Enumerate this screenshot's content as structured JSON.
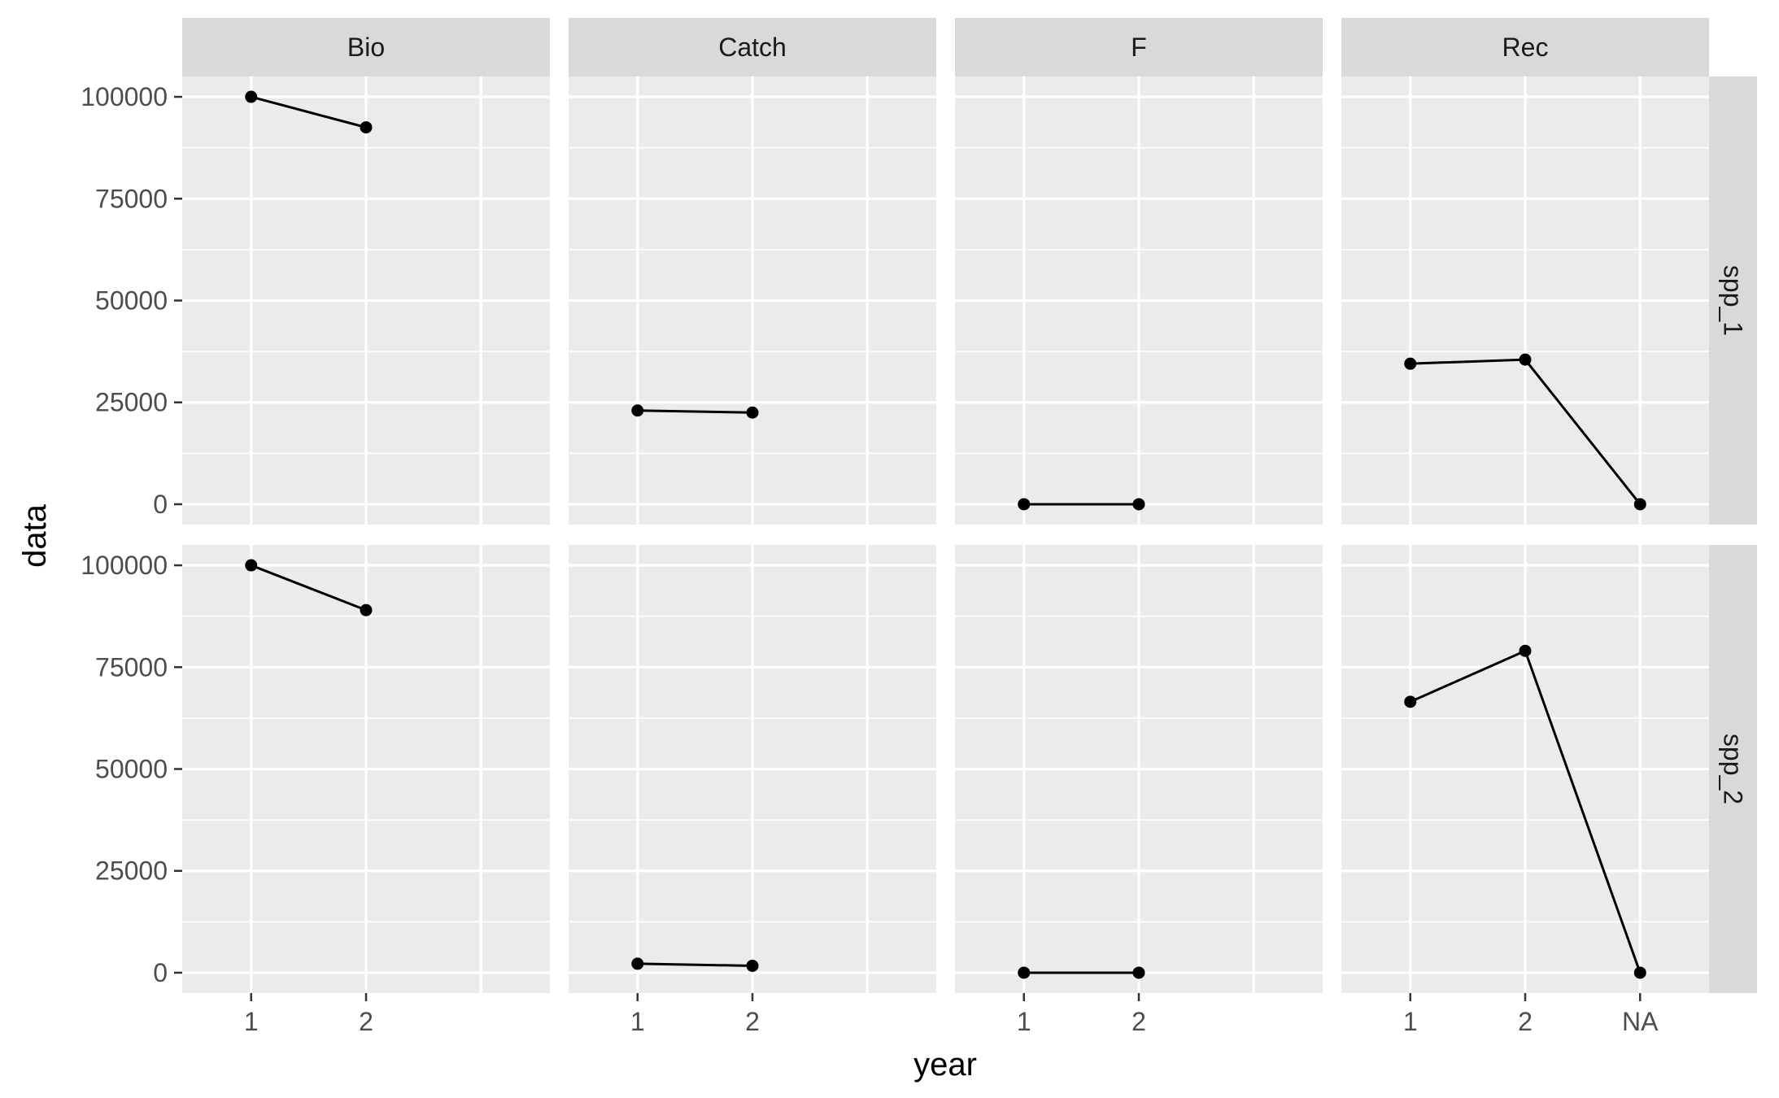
{
  "chart_data": {
    "type": "line",
    "facet_columns": [
      "Bio",
      "Catch",
      "F",
      "Rec"
    ],
    "facet_rows": [
      "spp_1",
      "spp_2"
    ],
    "xlabel": "year",
    "ylabel": "data",
    "x_categories": [
      "1",
      "2",
      "NA"
    ],
    "y_ticks": [
      0,
      25000,
      50000,
      75000,
      100000
    ],
    "y_tick_labels": [
      "0",
      "25000",
      "50000",
      "75000",
      "100000"
    ],
    "ylim": [
      -5000,
      105000
    ],
    "grid": true,
    "legend": "none",
    "panels": [
      {
        "row": "spp_1",
        "col": "Bio",
        "x": [
          "1",
          "2"
        ],
        "y": [
          100000,
          92500
        ]
      },
      {
        "row": "spp_1",
        "col": "Catch",
        "x": [
          "1",
          "2"
        ],
        "y": [
          23000,
          22500
        ]
      },
      {
        "row": "spp_1",
        "col": "F",
        "x": [
          "1",
          "2"
        ],
        "y": [
          0,
          0
        ]
      },
      {
        "row": "spp_1",
        "col": "Rec",
        "x": [
          "1",
          "2",
          "NA"
        ],
        "y": [
          34500,
          35500,
          0
        ]
      },
      {
        "row": "spp_2",
        "col": "Bio",
        "x": [
          "1",
          "2"
        ],
        "y": [
          100000,
          89000
        ]
      },
      {
        "row": "spp_2",
        "col": "Catch",
        "x": [
          "1",
          "2"
        ],
        "y": [
          2200,
          1700
        ]
      },
      {
        "row": "spp_2",
        "col": "F",
        "x": [
          "1",
          "2"
        ],
        "y": [
          0,
          0
        ]
      },
      {
        "row": "spp_2",
        "col": "Rec",
        "x": [
          "1",
          "2",
          "NA"
        ],
        "y": [
          66500,
          79000,
          0
        ]
      }
    ],
    "colors": {
      "panel_bg": "#ebebeb",
      "strip_bg": "#d9d9d9",
      "grid": "#ffffff",
      "line": "#000000",
      "point": "#000000"
    }
  }
}
